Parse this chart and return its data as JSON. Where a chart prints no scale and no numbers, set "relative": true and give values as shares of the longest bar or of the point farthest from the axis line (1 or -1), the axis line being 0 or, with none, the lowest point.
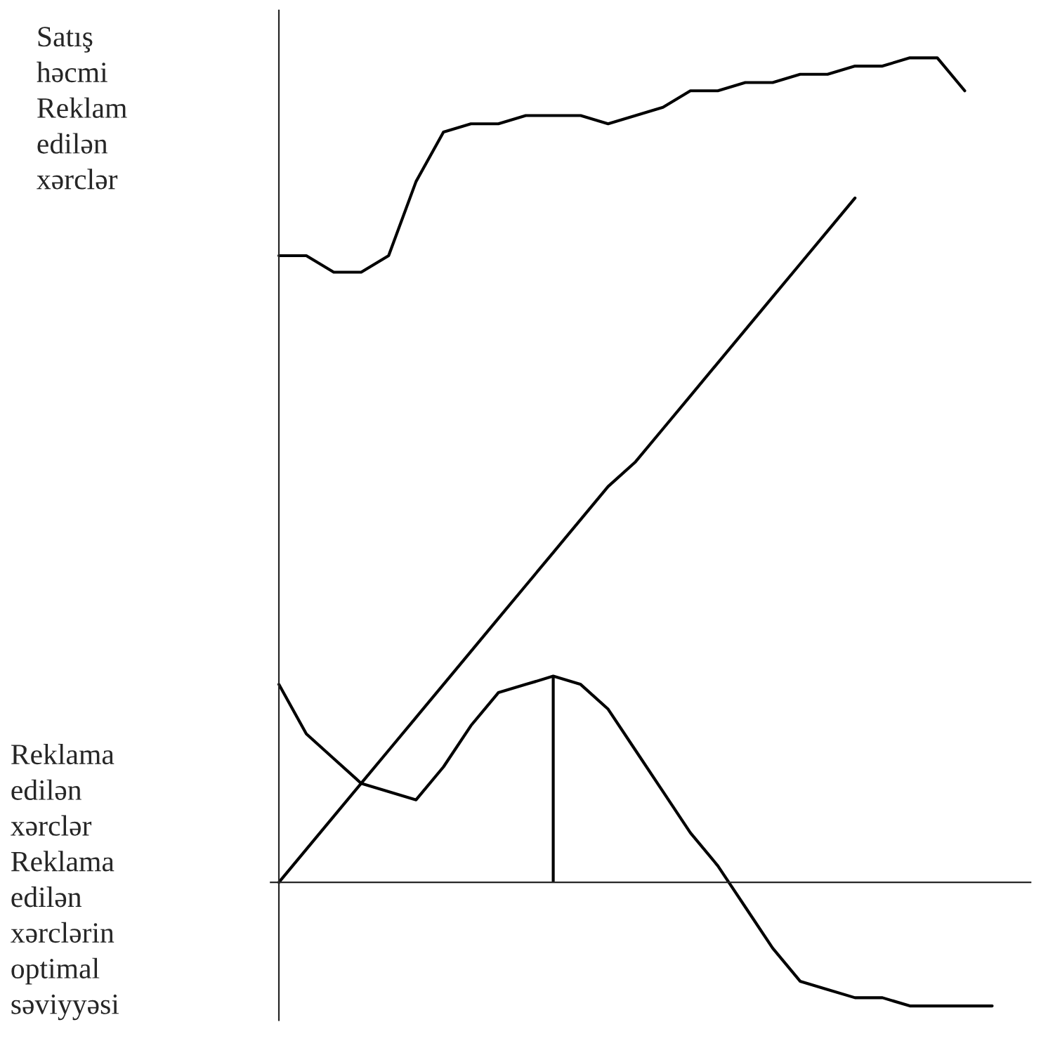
{
  "chart_data": {
    "type": "line",
    "relative": true,
    "ylabel": "Satış həcmi Reklam edilən xərclər",
    "annotations": [
      "Reklama edilən xərclər",
      "Reklama edilən xərclərin optimal səviyyəsi"
    ],
    "categories": [
      null,
      null,
      null,
      null,
      null,
      null,
      null,
      null,
      null,
      null,
      null,
      null,
      null,
      null,
      null,
      null,
      null,
      null,
      null,
      null,
      null,
      null,
      null,
      null,
      null,
      null,
      null,
      null
    ],
    "series": [
      {
        "color": "#000000",
        "values": [
          0.76,
          0.76,
          0.74,
          0.74,
          0.76,
          0.85,
          0.91,
          0.92,
          0.92,
          0.93,
          0.93,
          0.93,
          0.92,
          0.93,
          0.94,
          0.96,
          0.96,
          0.97,
          0.97,
          0.98,
          0.98,
          0.99,
          0.99,
          1.0,
          1.0,
          0.96,
          null,
          null
        ]
      },
      {
        "color": "#000000",
        "values": [
          0,
          0.04,
          0.08,
          0.12,
          0.16,
          0.2,
          0.24,
          0.28,
          0.32,
          0.36,
          0.4,
          0.44,
          0.48,
          0.51,
          0.55,
          0.59,
          0.63,
          0.67,
          0.71,
          0.75,
          0.79,
          0.83,
          null,
          null,
          null,
          null,
          null,
          null
        ]
      },
      {
        "color": "#000000",
        "values": [
          0.24,
          0.18,
          0.15,
          0.12,
          0.11,
          0.1,
          0.14,
          0.19,
          0.23,
          0.24,
          0.25,
          0.24,
          0.21,
          0.16,
          0.11,
          0.06,
          0.02,
          -0.03,
          -0.08,
          -0.12,
          -0.13,
          -0.14,
          -0.14,
          -0.15,
          -0.15,
          -0.15,
          -0.15,
          null
        ]
      }
    ],
    "marker": "none",
    "line_style": "solid"
  }
}
